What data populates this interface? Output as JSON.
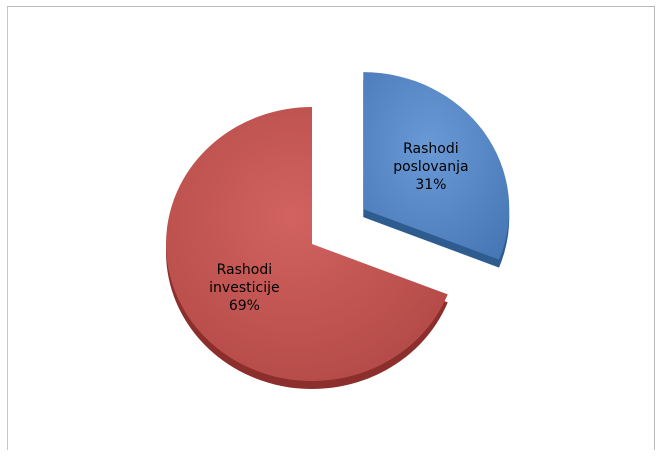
{
  "chart_data": {
    "type": "pie",
    "title": "",
    "style": "3d-exploded",
    "start_angle_deg": 0,
    "slices": [
      {
        "label_lines": [
          "Rashodi",
          "poslovanja",
          "31%"
        ],
        "value": 31,
        "color": "#4f81bd",
        "side_color": "#2f5c8f",
        "exploded": true,
        "label_color": "#000000"
      },
      {
        "label_lines": [
          "Rashodi",
          "investicije",
          "69%"
        ],
        "value": 69,
        "color": "#c0504d",
        "side_color": "#8c2f2c",
        "exploded": false,
        "label_color": "#000000"
      }
    ],
    "legend": "none",
    "grid": false
  }
}
